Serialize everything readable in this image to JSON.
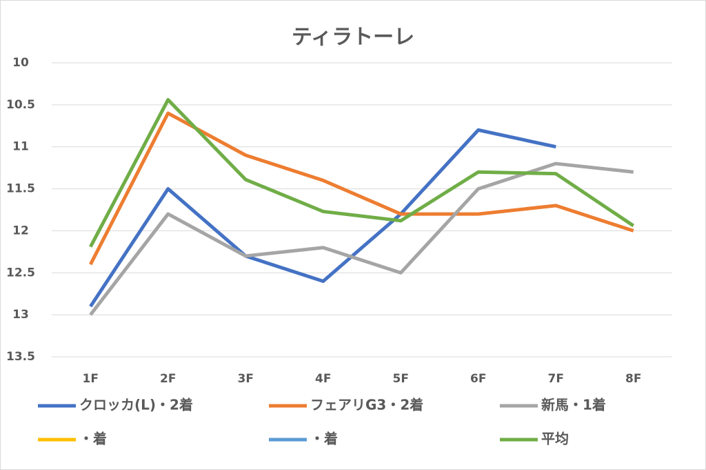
{
  "chart_data": {
    "type": "line",
    "title": "ティラトーレ",
    "categories": [
      "1F",
      "2F",
      "3F",
      "4F",
      "5F",
      "6F",
      "7F",
      "8F"
    ],
    "series": [
      {
        "name": "クロッカ(L)・2着",
        "color": "#4472c4",
        "values": [
          12.9,
          11.5,
          12.3,
          12.6,
          11.8,
          10.8,
          11.0,
          null
        ]
      },
      {
        "name": "フェアリG3・2着",
        "color": "#ed7d31",
        "values": [
          12.4,
          10.6,
          11.1,
          11.4,
          11.8,
          11.8,
          11.7,
          12.0
        ]
      },
      {
        "name": "新馬・1着",
        "color": "#a5a5a5",
        "values": [
          13.0,
          11.8,
          12.3,
          12.2,
          12.5,
          11.5,
          11.2,
          11.3
        ]
      },
      {
        "name": "・着",
        "color": "#ffc000",
        "values": [
          null,
          null,
          null,
          null,
          null,
          null,
          null,
          null
        ]
      },
      {
        "name": "・着",
        "color": "#5b9bd5",
        "values": [
          null,
          null,
          null,
          null,
          null,
          null,
          null,
          null
        ]
      },
      {
        "name": "平均",
        "color": "#70ad47",
        "values": [
          12.19,
          10.44,
          11.39,
          11.77,
          11.88,
          11.3,
          11.32,
          11.94
        ]
      }
    ],
    "ylim": [
      10,
      13.5
    ],
    "y_inverted": true,
    "yticks": [
      10,
      10.5,
      11,
      11.5,
      12,
      12.5,
      13,
      13.5
    ],
    "grid": true,
    "legend": "bottom"
  }
}
